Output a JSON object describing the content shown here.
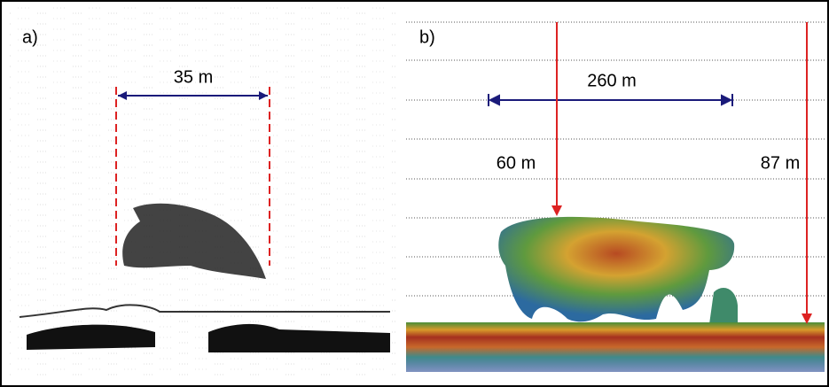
{
  "panels": [
    {
      "label": "a)",
      "annotations": [
        "35 m"
      ]
    },
    {
      "label": "b)",
      "annotations": [
        "260 m",
        "60 m",
        "87 m"
      ]
    }
  ]
}
